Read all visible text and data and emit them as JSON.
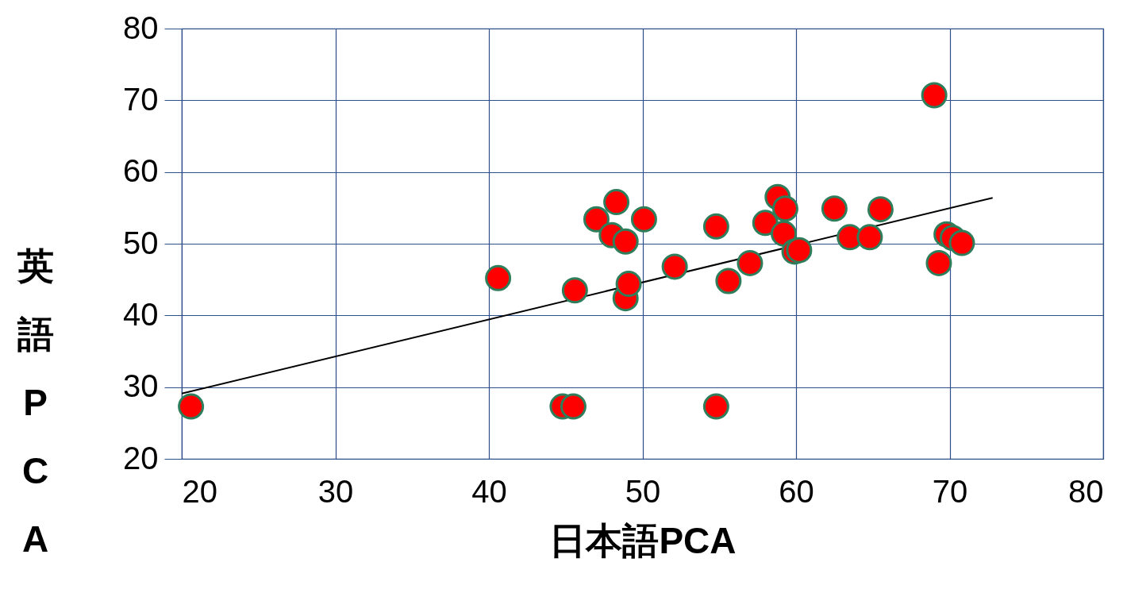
{
  "chart_data": {
    "type": "scatter",
    "xlabel": "日本語PCA",
    "ylabel": "英語PCA",
    "xlim": [
      20,
      80
    ],
    "ylim": [
      20,
      80
    ],
    "xticks": [
      20,
      30,
      40,
      50,
      60,
      70,
      80
    ],
    "yticks": [
      20,
      30,
      40,
      50,
      60,
      70,
      80
    ],
    "grid": true,
    "series": [
      {
        "marker": "circle",
        "color": "#ff0000",
        "x": [
          20.6,
          40.6,
          44.8,
          45.5,
          45.6,
          47.0,
          48.3,
          48.0,
          48.9,
          48.9,
          49.1,
          50.1,
          52.1,
          54.8,
          54.8,
          55.6,
          57.0,
          58.0,
          58.8,
          59.3,
          59.2,
          59.9,
          60.2,
          62.5,
          63.5,
          64.8,
          65.5,
          69.0,
          69.3,
          69.8,
          70.2,
          70.8
        ],
        "values": [
          27.3,
          45.2,
          27.3,
          27.3,
          43.5,
          53.4,
          55.8,
          51.2,
          50.3,
          42.4,
          44.4,
          53.4,
          46.8,
          52.4,
          27.3,
          44.8,
          47.3,
          52.9,
          56.5,
          54.9,
          51.4,
          48.9,
          49.1,
          54.9,
          50.9,
          50.9,
          54.8,
          70.7,
          47.3,
          51.3,
          50.8,
          50.1
        ]
      },
      {
        "type": "line",
        "color": "#000000",
        "x": [
          20,
          72.8
        ],
        "values": [
          29.1,
          56.4
        ]
      }
    ]
  }
}
